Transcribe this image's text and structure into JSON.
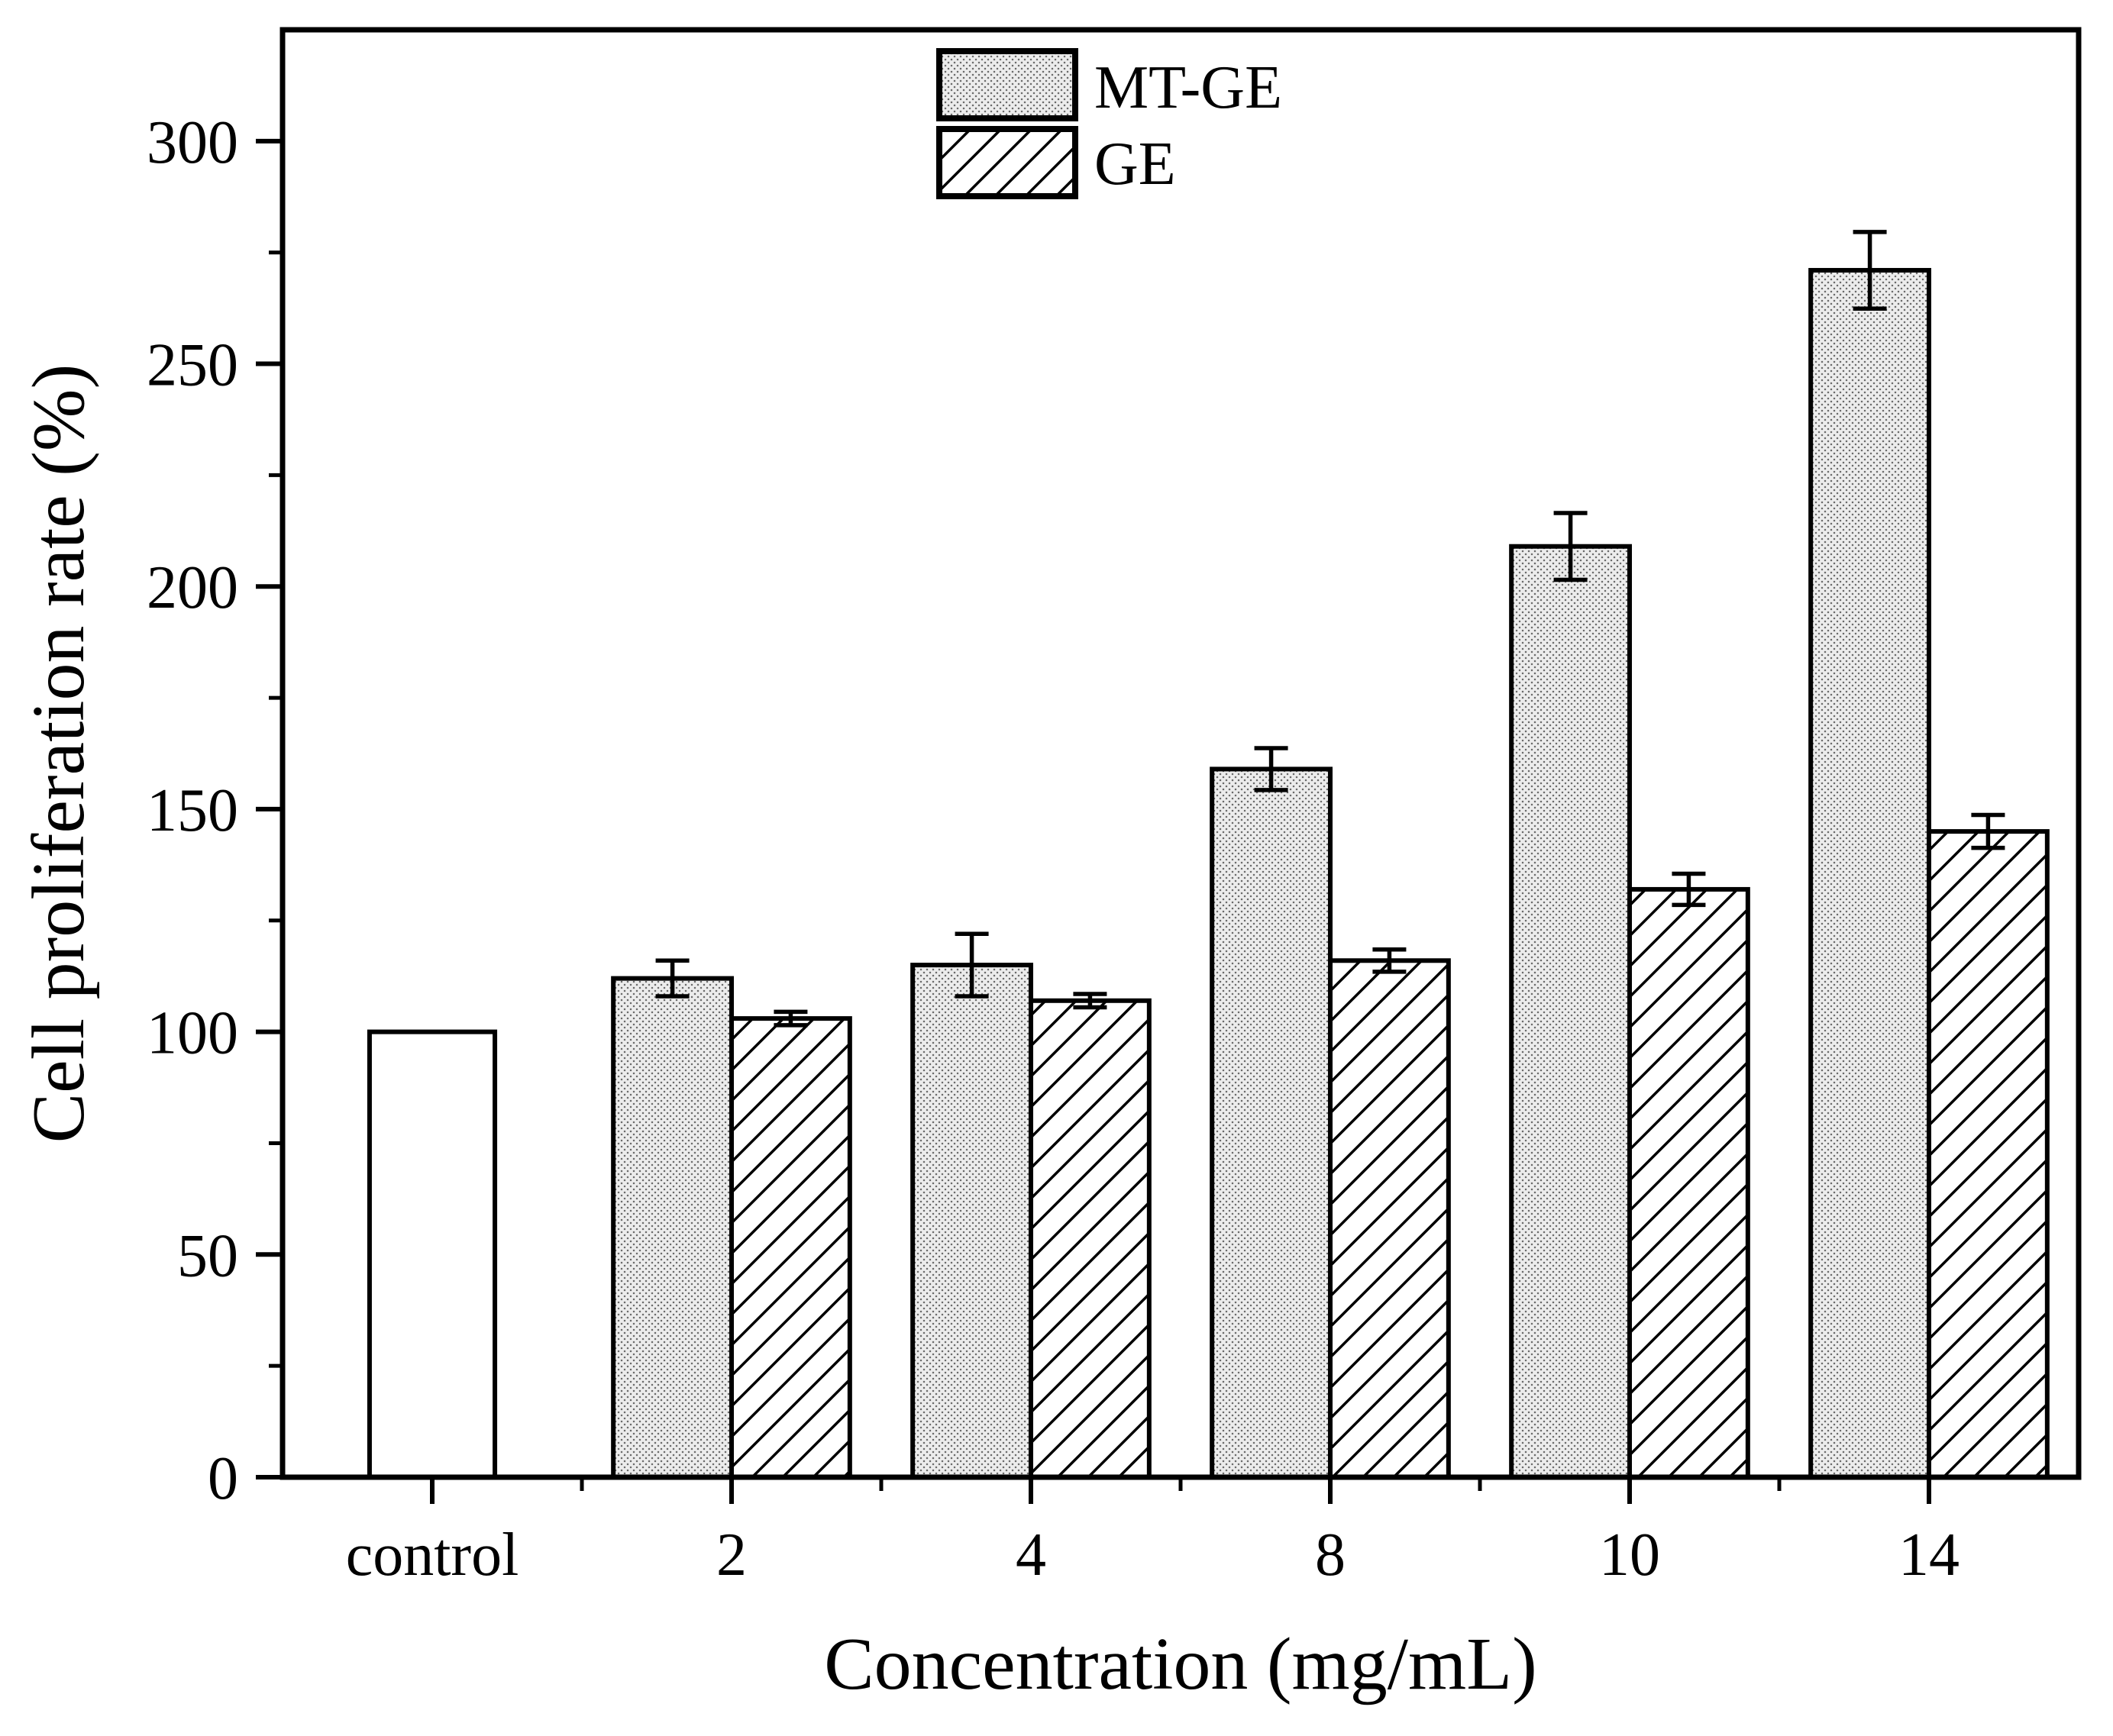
{
  "chart_data": {
    "type": "bar",
    "categories": [
      "control",
      "2",
      "4",
      "8",
      "10",
      "14"
    ],
    "control": {
      "values": [
        100,
        null,
        null,
        null,
        null,
        null
      ],
      "fill": "#ffffff"
    },
    "series": [
      {
        "name": "MT-GE",
        "values": [
          null,
          112,
          115,
          159,
          209,
          271
        ],
        "errors": [
          null,
          4,
          7,
          4.7,
          7.5,
          8.6
        ],
        "fill_pattern": "dots"
      },
      {
        "name": "GE",
        "values": [
          null,
          103,
          107,
          116,
          132,
          145
        ],
        "errors": [
          null,
          1.5,
          1.5,
          2.5,
          3.5,
          3.7
        ],
        "fill_pattern": "diagonal-hatch"
      }
    ],
    "xlabel": "Concentration (mg/mL)",
    "ylabel": "Cell proliferation rate (%)",
    "ylim": [
      0,
      325
    ],
    "yticks": [
      0,
      50,
      100,
      150,
      200,
      250,
      300
    ],
    "grid": false,
    "legend_position": "top-center",
    "stroke_color": "#000000"
  }
}
